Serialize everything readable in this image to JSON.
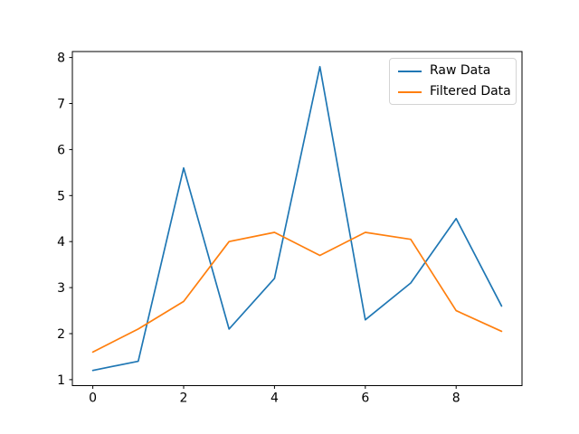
{
  "chart_data": {
    "type": "line",
    "x": [
      0,
      1,
      2,
      3,
      4,
      5,
      6,
      7,
      8,
      9
    ],
    "series": [
      {
        "name": "Raw Data",
        "color": "#1f77b4",
        "values": [
          1.2,
          1.4,
          5.6,
          2.1,
          3.2,
          7.8,
          2.3,
          3.1,
          4.5,
          2.6
        ]
      },
      {
        "name": "Filtered Data",
        "color": "#ff7f0e",
        "values": [
          1.6,
          2.1,
          2.7,
          4.0,
          4.2,
          3.7,
          4.2,
          4.05,
          2.5,
          2.05
        ]
      }
    ],
    "title": "",
    "xlabel": "",
    "ylabel": "",
    "xlim": [
      -0.45,
      9.45
    ],
    "ylim": [
      0.87,
      8.13
    ],
    "xticks": [
      0,
      2,
      4,
      6,
      8
    ],
    "yticks": [
      1,
      2,
      3,
      4,
      5,
      6,
      7,
      8
    ],
    "grid": false,
    "legend": {
      "position": "upper right",
      "entries": [
        "Raw Data",
        "Filtered Data"
      ]
    }
  },
  "style": {
    "spine_color": "#000000",
    "tick_color": "#000000",
    "tick_label_color": "#000000",
    "background": "#ffffff",
    "legend_border": "#d4d4d4"
  }
}
